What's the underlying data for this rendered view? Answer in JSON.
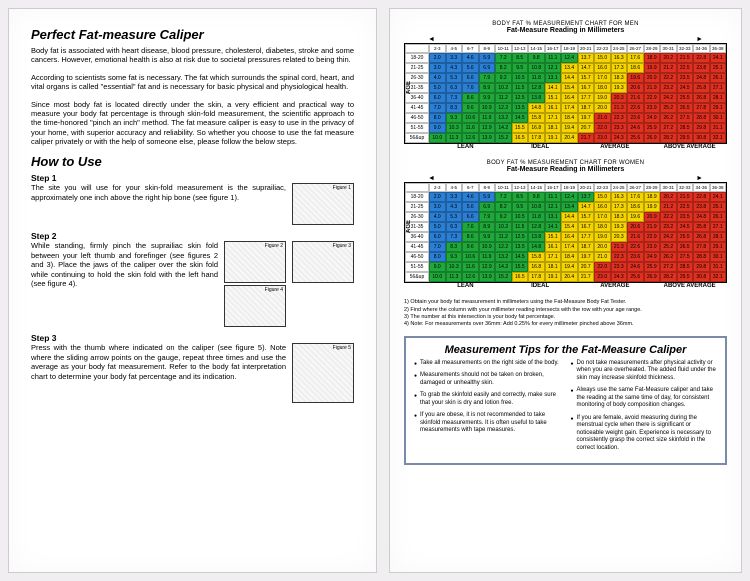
{
  "left": {
    "title": "Perfect Fat-measure Caliper",
    "p1": "Body fat is associated with heart disease, blood pressure, cholesterol, diabetes, stroke and some cancers. However, emotional health is also at risk due to societal pressures related to being thin.",
    "p2": "According to scientists some fat is necessary. The fat which surrounds the spinal cord, heart, and vital organs is called \"essential\" fat and is necessary for basic physical and physiological health.",
    "p3": "Since most body fat is located directly under the skin, a very efficient and practical way to measure your body fat percentage is through skin-fold measurement, the scientific approach to the time-honored \"pinch an inch\" method. The fat measure caliper is easy to use in the privacy of your home, with superior accuracy and reliability. So whether you choose to use the fat measure caliper privately or with the help of someone else, please follow the below steps.",
    "howto": "How to Use",
    "step1_label": "Step 1",
    "step1": "The site you will use for your skin-fold measurement is the suprailiac, approximately one inch above the right hip bone (see figure 1).",
    "step2_label": "Step 2",
    "step2": "While standing, firmly pinch the suprailiac skin fold between your left thumb and forefinger (see figures 2 and 3). Place the jaws of the caliper over the skin fold while continuing to hold the skin fold with the left hand (see figure 4).",
    "step3_label": "Step 3",
    "step3": "Press with the thumb where indicated on the caliper (see figure 5). Note where the sliding arrow points on the gauge, repeat three times and use the average as your body fat measurement. Refer to the body fat interpretation chart to determine your body fat percentage and its indication.",
    "fig1": "Figure 1",
    "fig2": "Figure 2",
    "fig3": "Figure 3",
    "fig4": "Figure 4",
    "fig5": "Figure 5"
  },
  "right": {
    "chart_men_title": "BODY FAT % MEASUREMENT CHART FOR MEN",
    "chart_women_title": "BODY FAT % MEASUREMENT CHART FOR WOMEN",
    "chart_sub": "Fat-Measure Reading in Millimeters",
    "age_label": "AGE",
    "mm_headers": [
      "2-3",
      "4-5",
      "6-7",
      "8-9",
      "10-11",
      "12-13",
      "14-15",
      "16-17",
      "18-19",
      "20-21",
      "22-23",
      "24-25",
      "26-27",
      "28-29",
      "30-31",
      "32-33",
      "34-36",
      "36-38"
    ],
    "age_rows": [
      "18-20",
      "21-25",
      "26-30",
      "31-35",
      "36-40",
      "41-45",
      "46-50",
      "51-55",
      "56&up"
    ],
    "categories": [
      "LEAN",
      "IDEAL",
      "AVERAGE",
      "ABOVE AVERAGE"
    ],
    "men_zones": [
      [
        0,
        0,
        0,
        0,
        1,
        1,
        1,
        1,
        1,
        2,
        2,
        2,
        2,
        3,
        3,
        3,
        3,
        3
      ],
      [
        0,
        0,
        0,
        0,
        1,
        1,
        1,
        1,
        2,
        2,
        2,
        2,
        2,
        3,
        3,
        3,
        3,
        3
      ],
      [
        0,
        0,
        0,
        1,
        1,
        1,
        1,
        1,
        2,
        2,
        2,
        2,
        3,
        3,
        3,
        3,
        3,
        3
      ],
      [
        0,
        0,
        0,
        1,
        1,
        1,
        1,
        2,
        2,
        2,
        2,
        2,
        3,
        3,
        3,
        3,
        3,
        3
      ],
      [
        0,
        0,
        1,
        1,
        1,
        1,
        1,
        2,
        2,
        2,
        2,
        3,
        3,
        3,
        3,
        3,
        3,
        3
      ],
      [
        0,
        0,
        1,
        1,
        1,
        1,
        2,
        2,
        2,
        2,
        2,
        3,
        3,
        3,
        3,
        3,
        3,
        3
      ],
      [
        0,
        1,
        1,
        1,
        1,
        1,
        2,
        2,
        2,
        2,
        3,
        3,
        3,
        3,
        3,
        3,
        3,
        3
      ],
      [
        0,
        1,
        1,
        1,
        1,
        2,
        2,
        2,
        2,
        2,
        3,
        3,
        3,
        3,
        3,
        3,
        3,
        3
      ],
      [
        1,
        1,
        1,
        1,
        1,
        2,
        2,
        2,
        2,
        3,
        3,
        3,
        3,
        3,
        3,
        3,
        3,
        3
      ]
    ],
    "women_zones": [
      [
        0,
        0,
        0,
        0,
        1,
        1,
        1,
        1,
        1,
        1,
        2,
        2,
        2,
        2,
        3,
        3,
        3,
        3
      ],
      [
        0,
        0,
        0,
        1,
        1,
        1,
        1,
        1,
        1,
        2,
        2,
        2,
        2,
        2,
        3,
        3,
        3,
        3
      ],
      [
        0,
        0,
        0,
        1,
        1,
        1,
        1,
        1,
        2,
        2,
        2,
        2,
        2,
        3,
        3,
        3,
        3,
        3
      ],
      [
        0,
        0,
        1,
        1,
        1,
        1,
        1,
        1,
        2,
        2,
        2,
        2,
        3,
        3,
        3,
        3,
        3,
        3
      ],
      [
        0,
        0,
        1,
        1,
        1,
        1,
        1,
        2,
        2,
        2,
        2,
        2,
        3,
        3,
        3,
        3,
        3,
        3
      ],
      [
        0,
        1,
        1,
        1,
        1,
        1,
        1,
        2,
        2,
        2,
        2,
        3,
        3,
        3,
        3,
        3,
        3,
        3
      ],
      [
        0,
        1,
        1,
        1,
        1,
        1,
        2,
        2,
        2,
        2,
        2,
        3,
        3,
        3,
        3,
        3,
        3,
        3
      ],
      [
        1,
        1,
        1,
        1,
        1,
        1,
        2,
        2,
        2,
        2,
        3,
        3,
        3,
        3,
        3,
        3,
        3,
        3
      ],
      [
        1,
        1,
        1,
        1,
        1,
        2,
        2,
        2,
        2,
        2,
        3,
        3,
        3,
        3,
        3,
        3,
        3,
        3
      ]
    ],
    "zone_colors": [
      "#2a7fd4",
      "#1fa83a",
      "#f5d400",
      "#e03020"
    ],
    "instructions": [
      "1) Obtain your body fat measurement in millimeters using the Fat-Measure Body Fat Tester.",
      "2) Find where the column with your millimeter reading intersects with the row with your age range.",
      "3) The number at this intersection is your body fat percentage.",
      "4) Note: For measurements over 36mm: Add 0.25% for every millimeter pinched above 36mm."
    ],
    "tips_title": "Measurement Tips for the Fat-Measure Caliper",
    "tips_left": [
      "Take all measurements on the right side of the body.",
      "Measurements should not be taken on broken, damaged or unhealthy skin.",
      "To grab the skinfold easily and correctly, make sure that your skin is dry and lotion free.",
      "If you are obese, it is not recommended to take skinfold measurements. It is often useful to take measurements with tape measures."
    ],
    "tips_right": [
      "Do not take measurements after physical activity or when you are overheated. The added fluid under the skin may increase skinfold thickness.",
      "Always use the same Fat-Measure caliper and take the reading at the same time of day, for consistent monitoring of body composition changes.",
      "If you are female, avoid measuring during the menstrual cycle when there is significant or noticeable weight gain. Experience is necessary to consistently grasp the correct size skinfold in the correct location."
    ]
  }
}
